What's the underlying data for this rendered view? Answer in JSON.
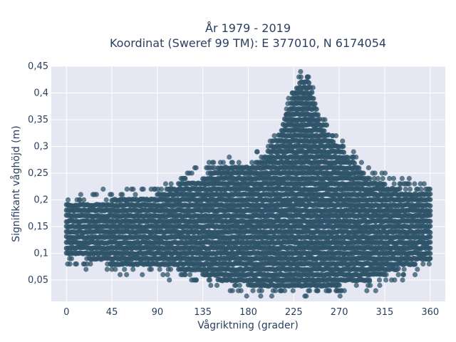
{
  "chart_data": {
    "type": "scatter",
    "title_line1": "År 1979 - 2019",
    "title_line2": "Koordinat (Sweref 99 TM): E 377010, N 6174054",
    "xlabel": "Vågriktning (grader)",
    "ylabel": "Signifikant våghöjd (m)",
    "xlim": [
      -15,
      375
    ],
    "ylim": [
      0.01,
      0.45
    ],
    "xticks": [
      0,
      45,
      90,
      135,
      180,
      225,
      270,
      315,
      360
    ],
    "xtick_labels": [
      "0",
      "45",
      "90",
      "135",
      "180",
      "225",
      "270",
      "315",
      "360"
    ],
    "yticks": [
      0.05,
      0.1,
      0.15,
      0.2,
      0.25,
      0.3,
      0.35,
      0.4,
      0.45
    ],
    "ytick_labels": [
      "0,05",
      "0,1",
      "0,15",
      "0,2",
      "0,25",
      "0,3",
      "0,35",
      "0,4",
      "0,45"
    ],
    "grid": true,
    "marker_color": "#2f5469",
    "plot_bgcolor": "#e5e8f2",
    "envelope_x": [
      0,
      45,
      90,
      110,
      135,
      150,
      180,
      195,
      210,
      225,
      232,
      240,
      255,
      270,
      300,
      330,
      360
    ],
    "envelope_min": [
      0.1,
      0.08,
      0.08,
      0.07,
      0.06,
      0.05,
      0.04,
      0.04,
      0.04,
      0.04,
      0.04,
      0.04,
      0.04,
      0.04,
      0.05,
      0.07,
      0.09
    ],
    "envelope_max": [
      0.19,
      0.2,
      0.21,
      0.23,
      0.24,
      0.26,
      0.26,
      0.28,
      0.32,
      0.4,
      0.43,
      0.42,
      0.33,
      0.3,
      0.24,
      0.22,
      0.21
    ]
  }
}
